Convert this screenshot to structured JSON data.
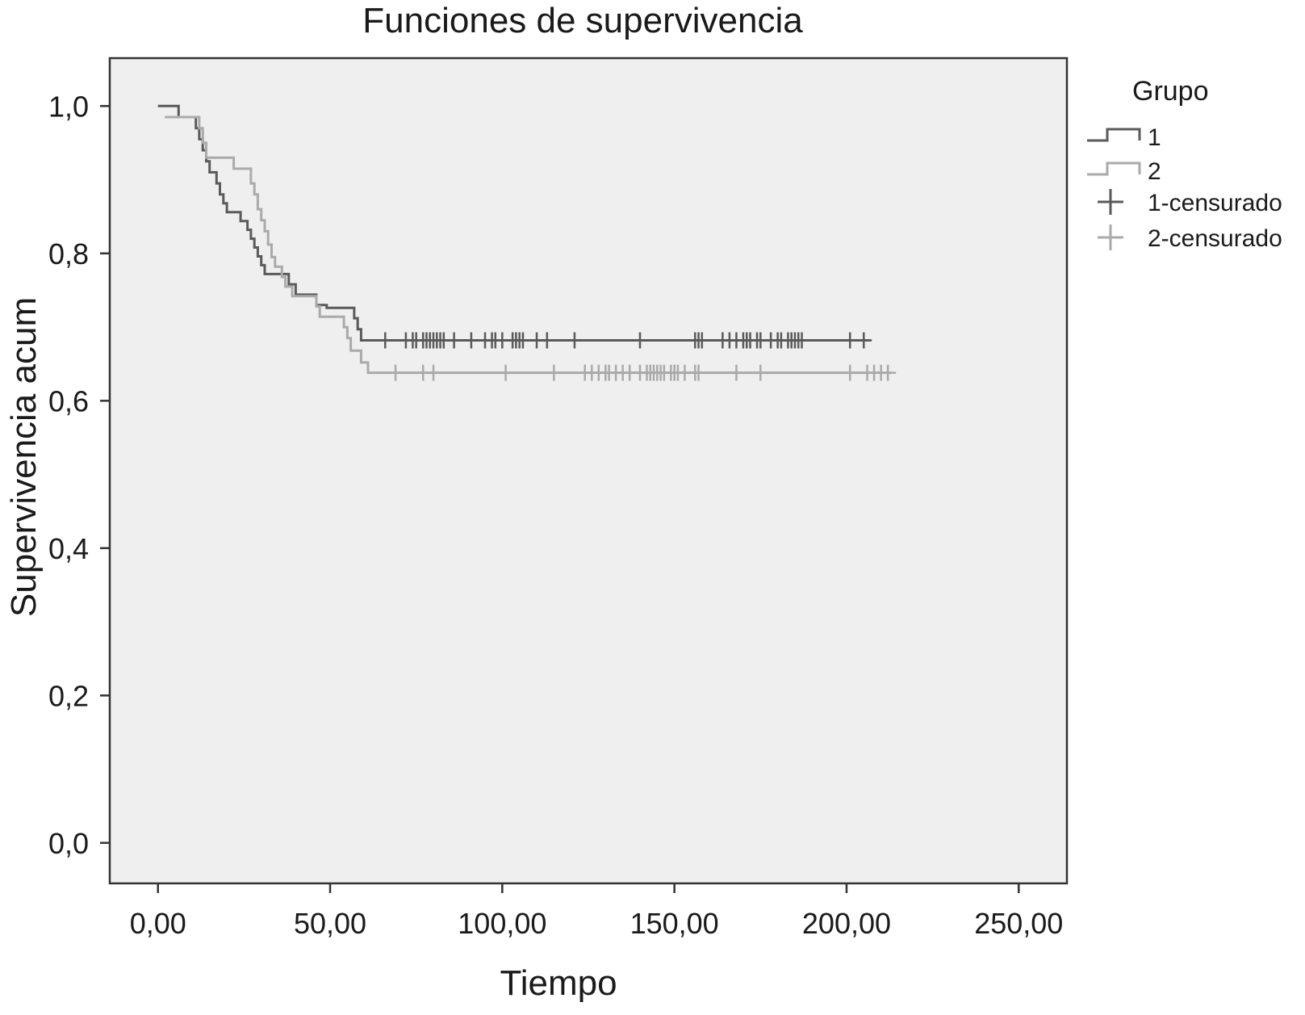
{
  "chart_data": {
    "type": "line",
    "title": "Funciones de supervivencia",
    "xlabel": "Tiempo",
    "ylabel": "Supervivencia acum",
    "xlim": [
      -14,
      264
    ],
    "ylim": [
      -0.055,
      1.065
    ],
    "x_ticks": [
      0,
      50,
      100,
      150,
      200,
      250
    ],
    "x_tick_labels": [
      "0,00",
      "50,00",
      "100,00",
      "150,00",
      "200,00",
      "250,00"
    ],
    "y_ticks": [
      0,
      0.2,
      0.4,
      0.6,
      0.8,
      1.0
    ],
    "y_tick_labels": [
      "0,0",
      "0,2",
      "0,4",
      "0,6",
      "0,8",
      "1,0"
    ],
    "grid": false,
    "legend_position": "right",
    "legend_title": "Grupo",
    "background_color": "#efefef",
    "series": [
      {
        "name": "1",
        "color": "#5a5a5a",
        "steps": [
          [
            0,
            1.0
          ],
          [
            6,
            0.985
          ],
          [
            11,
            0.97
          ],
          [
            12,
            0.955
          ],
          [
            13,
            0.94
          ],
          [
            14,
            0.925
          ],
          [
            15,
            0.91
          ],
          [
            17,
            0.895
          ],
          [
            18,
            0.88
          ],
          [
            19,
            0.868
          ],
          [
            20,
            0.856
          ],
          [
            24,
            0.844
          ],
          [
            26,
            0.832
          ],
          [
            27,
            0.82
          ],
          [
            28,
            0.808
          ],
          [
            29,
            0.796
          ],
          [
            30,
            0.784
          ],
          [
            31,
            0.772
          ],
          [
            38,
            0.758
          ],
          [
            40,
            0.744
          ],
          [
            46,
            0.73
          ],
          [
            49,
            0.726
          ],
          [
            57,
            0.712
          ],
          [
            58,
            0.697
          ],
          [
            59,
            0.682
          ]
        ],
        "end_x": 207,
        "censored_label": "1-censurado",
        "censored_color": "#5a5a5a",
        "censored": [
          66,
          72,
          74,
          75,
          77,
          78,
          79,
          80,
          81,
          82,
          83,
          86,
          91,
          95,
          97,
          98,
          100,
          103,
          104,
          105,
          106,
          110,
          113,
          121,
          140,
          156,
          157,
          158,
          164,
          166,
          168,
          170,
          171,
          172,
          174,
          175,
          178,
          180,
          181,
          183,
          184,
          185,
          186,
          187,
          201,
          205
        ]
      },
      {
        "name": "2",
        "color": "#aaaaaa",
        "steps": [
          [
            2,
            0.985
          ],
          [
            12,
            0.97
          ],
          [
            13,
            0.95
          ],
          [
            14,
            0.93
          ],
          [
            22,
            0.915
          ],
          [
            27,
            0.895
          ],
          [
            28,
            0.88
          ],
          [
            29,
            0.86
          ],
          [
            30,
            0.845
          ],
          [
            31,
            0.83
          ],
          [
            32,
            0.812
          ],
          [
            33,
            0.795
          ],
          [
            34,
            0.782
          ],
          [
            36,
            0.768
          ],
          [
            37,
            0.755
          ],
          [
            39,
            0.742
          ],
          [
            46,
            0.728
          ],
          [
            47,
            0.714
          ],
          [
            54,
            0.7
          ],
          [
            55,
            0.685
          ],
          [
            56,
            0.668
          ],
          [
            59,
            0.652
          ],
          [
            61,
            0.638
          ]
        ],
        "end_x": 213,
        "censored_label": "2-censurado",
        "censored_color": "#aaaaaa",
        "censored": [
          69,
          77,
          80,
          101,
          115,
          124,
          126,
          128,
          130,
          131,
          133,
          135,
          137,
          140,
          142,
          143,
          144,
          145,
          146,
          147,
          149,
          150,
          151,
          153,
          156,
          157,
          168,
          175,
          201,
          206,
          208,
          210,
          212
        ]
      }
    ]
  }
}
